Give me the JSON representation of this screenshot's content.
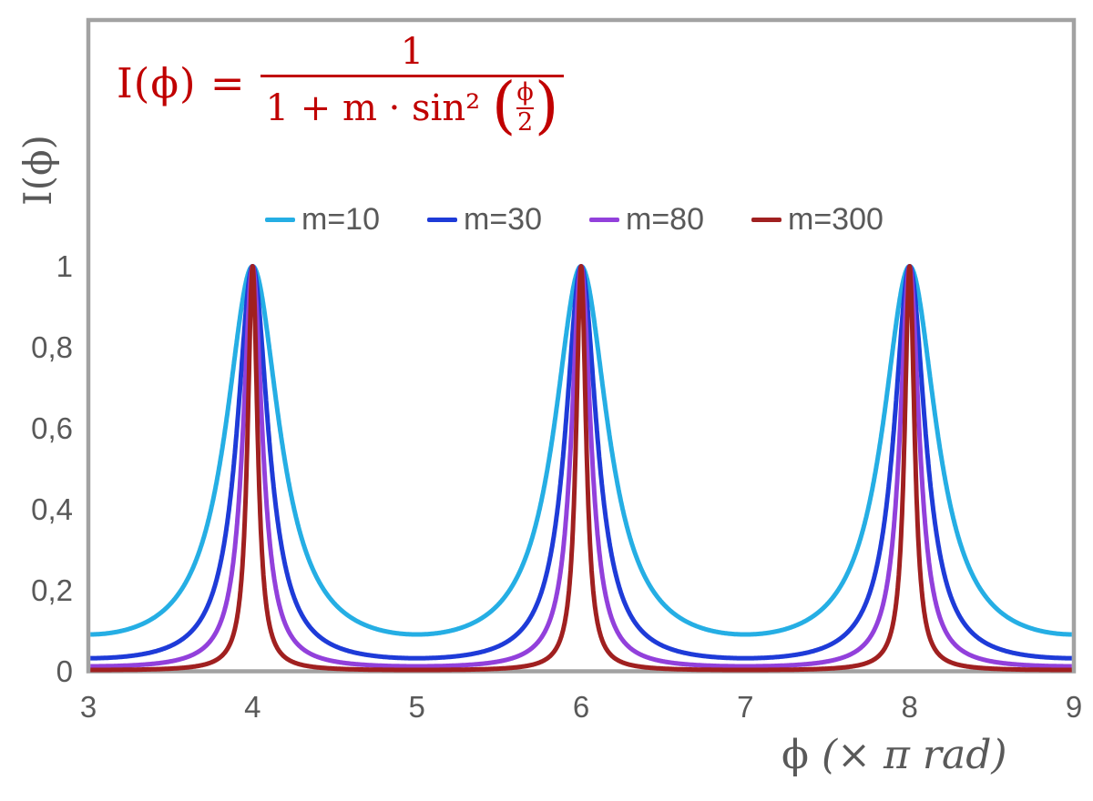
{
  "chart_data": {
    "type": "line",
    "function": "I(x) = 1 / (1 + m * sin^2(pi*x/2)), x expressed in units of pi rad",
    "formula": {
      "lhs": "I(ϕ) =",
      "numerator": "1",
      "den_prefix": "1 + m · sin² ",
      "paren_open": "(",
      "inner_numerator": "ϕ",
      "inner_denominator": "2",
      "paren_close": ")",
      "color": "#C00000"
    },
    "series": [
      {
        "name": "m=10",
        "m": 10,
        "color": "#25AEE4"
      },
      {
        "name": "m=30",
        "m": 30,
        "color": "#1E3BD8"
      },
      {
        "name": "m=80",
        "m": 80,
        "color": "#9240DB"
      },
      {
        "name": "m=300",
        "m": 300,
        "color": "#A02020"
      }
    ],
    "peaks_at_x": [
      4,
      6,
      8
    ],
    "peak_value": 1,
    "xlabel_phi": "ϕ",
    "xlabel_unit": "(× π rad)",
    "ylabel": "I(ϕ)",
    "x_ticks": [
      "3",
      "4",
      "5",
      "6",
      "7",
      "8",
      "9"
    ],
    "x_tick_values": [
      3,
      4,
      5,
      6,
      7,
      8,
      9
    ],
    "y_ticks": [
      "0",
      "0,2",
      "0,4",
      "0,6",
      "0,8",
      "1"
    ],
    "y_tick_values": [
      0,
      0.2,
      0.4,
      0.6,
      0.8,
      1
    ],
    "xlim": [
      3,
      9
    ],
    "ylim": [
      0,
      1.608
    ],
    "grid": false,
    "legend_position": "top-center",
    "axis_color": "#A2A2A2",
    "text_color": "#595959",
    "background": "#FFFFFF"
  }
}
